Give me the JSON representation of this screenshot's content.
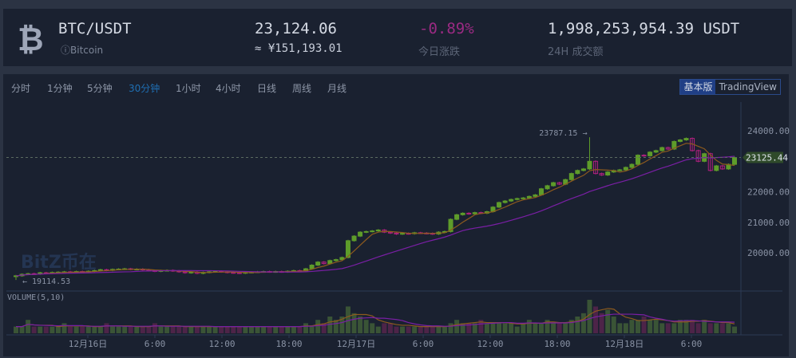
{
  "header": {
    "icon": "bitcoin-icon",
    "pair": "BTC/USDT",
    "name": "Bitcoin",
    "price": "23,124.06",
    "cny_price": "≈ ¥151,193.01",
    "change": "-0.89%",
    "change_label": "今日涨跌",
    "volume": "1,998,253,954.39 USDT",
    "volume_label": "24H 成交额"
  },
  "tabs": [
    {
      "label": "分时"
    },
    {
      "label": "1分钟"
    },
    {
      "label": "5分钟"
    },
    {
      "label": "30分钟",
      "active": true
    },
    {
      "label": "1小时"
    },
    {
      "label": "4小时"
    },
    {
      "label": "日线"
    },
    {
      "label": "周线"
    },
    {
      "label": "月线"
    }
  ],
  "version": {
    "basic": "基本版",
    "tv": "TradingView"
  },
  "colors": {
    "up": "#5e9c2a",
    "down": "#b1207f",
    "ma_fast": "#8d5a1e",
    "ma_slow": "#7a1fa5",
    "accent": "#1f6fb3"
  },
  "chart_data": {
    "type": "candlestick",
    "y_ticks": [
      "24000.00",
      "23000.00",
      "22000.00",
      "21000.00",
      "20000.00"
    ],
    "ylim": [
      18900,
      24450
    ],
    "x_ticks": [
      "12月16日",
      "6:00",
      "12:00",
      "18:00",
      "12月17日",
      "6:00",
      "12:00",
      "18:00",
      "12月18日",
      "6:00"
    ],
    "last_price": "23125.44",
    "max_label": "23787.15 →",
    "max_value": 23787.15,
    "max_index": 95,
    "min_label": "← 19114.53",
    "min_value": 19114.53,
    "volume_label": "VOLUME(5,10)",
    "closes": [
      19250,
      19300,
      19320,
      19310,
      19350,
      19340,
      19360,
      19370,
      19380,
      19360,
      19390,
      19380,
      19400,
      19420,
      19450,
      19430,
      19460,
      19470,
      19480,
      19460,
      19470,
      19450,
      19420,
      19400,
      19420,
      19430,
      19410,
      19380,
      19350,
      19370,
      19330,
      19360,
      19380,
      19400,
      19380,
      19360,
      19350,
      19340,
      19360,
      19370,
      19380,
      19390,
      19380,
      19390,
      19380,
      19400,
      19420,
      19410,
      19480,
      19600,
      19700,
      19650,
      19750,
      19780,
      19850,
      20400,
      20550,
      20680,
      20700,
      20720,
      20750,
      20680,
      20650,
      20620,
      20640,
      20630,
      20660,
      20650,
      20640,
      20620,
      20680,
      20700,
      21100,
      21250,
      21300,
      21280,
      21320,
      21300,
      21350,
      21500,
      21650,
      21700,
      21750,
      21780,
      21800,
      21850,
      21900,
      22100,
      22200,
      22300,
      22250,
      22400,
      22600,
      22700,
      22750,
      23000,
      22600,
      22550,
      22650,
      22700,
      22720,
      22800,
      22900,
      23200,
      23180,
      23300,
      23350,
      23450,
      23400,
      23650,
      23700,
      23750,
      23350,
      23000,
      23250,
      22700,
      22850,
      22750,
      22900,
      23125
    ],
    "volumes": [
      2,
      2,
      4,
      2,
      2,
      2,
      2,
      2,
      3,
      2,
      2,
      2,
      2,
      2,
      2,
      3,
      2,
      2,
      2,
      2,
      2,
      2,
      2,
      3,
      2,
      2,
      2,
      2,
      2,
      2,
      2,
      2,
      2,
      2,
      2,
      2,
      2,
      2,
      2,
      2,
      2,
      2,
      2,
      2,
      2,
      2,
      2,
      2,
      3,
      2,
      4,
      3,
      5,
      4,
      5,
      8,
      6,
      5,
      4,
      3,
      2,
      3,
      3,
      2,
      2,
      2,
      2,
      2,
      2,
      2,
      2,
      2,
      3,
      4,
      3,
      3,
      3,
      4,
      3,
      3,
      3,
      3,
      3,
      2,
      3,
      4,
      3,
      3,
      4,
      3,
      3,
      3,
      4,
      5,
      6,
      10,
      8,
      6,
      7,
      5,
      3,
      3,
      4,
      4,
      5,
      4,
      4,
      3,
      3,
      3,
      4,
      4,
      4,
      3,
      4,
      3,
      3,
      3,
      3,
      2
    ]
  }
}
